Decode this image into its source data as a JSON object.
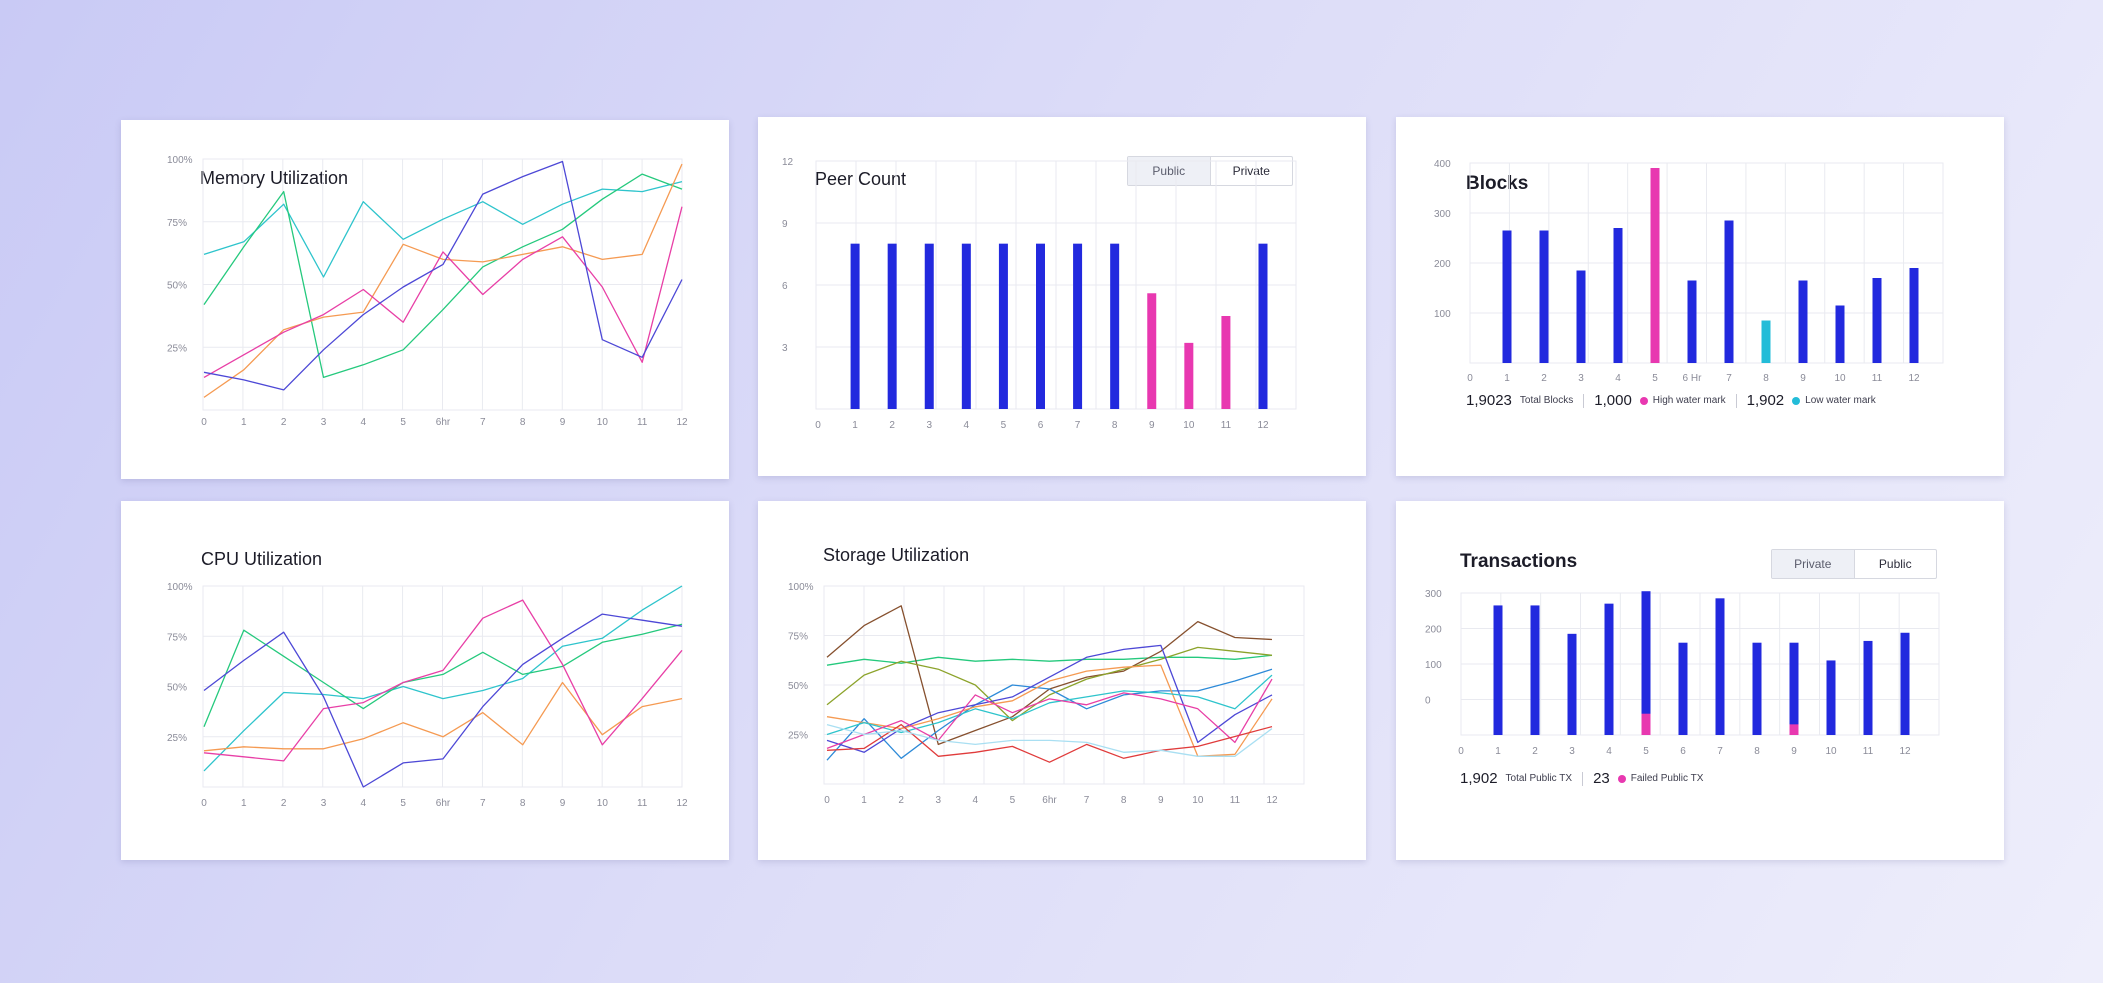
{
  "colors": {
    "primary_bar": "#2229de",
    "high_mark": "#e838b0",
    "low_mark": "#23bcd8",
    "grid": "#e9eaf0"
  },
  "memory": {
    "title": "Memory Utilization",
    "chart_data": {
      "type": "line",
      "title": "Memory Utilization",
      "x": [
        "0",
        "1",
        "2",
        "3",
        "4",
        "5",
        "6hr",
        "7",
        "8",
        "9",
        "10",
        "11",
        "12"
      ],
      "y_ticks": [
        "25%",
        "50%",
        "75%",
        "100%"
      ],
      "ylim": [
        0,
        100
      ],
      "grid": true,
      "series": [
        {
          "color": "#2ec4cc",
          "values": [
            62,
            67,
            82,
            53,
            83,
            68,
            76,
            83,
            74,
            82,
            88,
            87,
            91
          ]
        },
        {
          "color": "#25c97d",
          "values": [
            42,
            65,
            87,
            13,
            18,
            24,
            40,
            57,
            65,
            72,
            84,
            94,
            88
          ]
        },
        {
          "color": "#f59a52",
          "values": [
            5,
            16,
            32,
            37,
            39,
            66,
            60,
            59,
            62,
            65,
            60,
            62,
            98
          ]
        },
        {
          "color": "#e83fa6",
          "values": [
            13,
            22,
            31,
            38,
            48,
            35,
            63,
            46,
            60,
            69,
            49,
            19,
            81
          ]
        },
        {
          "color": "#4d48d6",
          "values": [
            15,
            12,
            8,
            24,
            38,
            49,
            58,
            86,
            93,
            99,
            28,
            21,
            52
          ]
        }
      ]
    }
  },
  "peer": {
    "title": "Peer Count",
    "toggle": {
      "left": "Public",
      "right": "Private"
    },
    "chart_data": {
      "type": "bar",
      "title": "Peer Count",
      "categories": [
        "0",
        "1",
        "2",
        "3",
        "4",
        "5",
        "6",
        "7",
        "8",
        "9",
        "10",
        "11",
        "12"
      ],
      "values": [
        null,
        8,
        8,
        8,
        8,
        8,
        8,
        8,
        8,
        5.6,
        3.2,
        4.5,
        8
      ],
      "highlight": [
        false,
        false,
        false,
        false,
        false,
        false,
        false,
        false,
        false,
        true,
        true,
        true,
        false
      ],
      "y_ticks": [
        "3",
        "6",
        "9",
        "12"
      ],
      "ylim": [
        0,
        12
      ]
    }
  },
  "blocks": {
    "title": "Blocks",
    "chart_data": {
      "type": "bar",
      "title": "Blocks",
      "categories": [
        "0",
        "1",
        "2",
        "3",
        "4",
        "5",
        "6 Hr",
        "7",
        "8",
        "9",
        "10",
        "11",
        "12"
      ],
      "values": [
        null,
        265,
        265,
        185,
        270,
        390,
        165,
        285,
        85,
        165,
        115,
        170,
        190
      ],
      "marks": [
        null,
        "",
        "",
        "",
        "",
        "high",
        "",
        "",
        "low",
        "",
        "",
        "",
        ""
      ],
      "y_ticks": [
        "100",
        "200",
        "300",
        "400"
      ],
      "ylim": [
        0,
        400
      ]
    },
    "stats": [
      {
        "value": "1,9023",
        "label": "Total Blocks"
      },
      {
        "value": "1,000",
        "label": "High water mark"
      },
      {
        "value": "1,902",
        "label": "Low water mark"
      }
    ]
  },
  "cpu": {
    "title": "CPU Utilization",
    "chart_data": {
      "type": "line",
      "title": "CPU Utilization",
      "x": [
        "0",
        "1",
        "2",
        "3",
        "4",
        "5",
        "6hr",
        "7",
        "8",
        "9",
        "10",
        "11",
        "12"
      ],
      "y_ticks": [
        "25%",
        "50%",
        "75%",
        "100%"
      ],
      "ylim": [
        0,
        100
      ],
      "grid": true,
      "series": [
        {
          "color": "#2ec4cc",
          "values": [
            8,
            28,
            47,
            46,
            44,
            50,
            44,
            48,
            54,
            70,
            74,
            88,
            100
          ]
        },
        {
          "color": "#25c97d",
          "values": [
            30,
            78,
            65,
            52,
            39,
            52,
            56,
            67,
            56,
            60,
            72,
            76,
            81
          ]
        },
        {
          "color": "#f59a52",
          "values": [
            18,
            20,
            19,
            19,
            24,
            32,
            25,
            37,
            21,
            52,
            26,
            40,
            44
          ]
        },
        {
          "color": "#e83fa6",
          "values": [
            17,
            15,
            13,
            39,
            42,
            52,
            58,
            84,
            93,
            61,
            21,
            44,
            68
          ]
        },
        {
          "color": "#4d48d6",
          "values": [
            48,
            63,
            77,
            45,
            0,
            12,
            14,
            40,
            61,
            74,
            86,
            83,
            80
          ]
        }
      ]
    }
  },
  "storage": {
    "title": "Storage Utilization",
    "chart_data": {
      "type": "line",
      "title": "Storage Utilization",
      "x": [
        "0",
        "1",
        "2",
        "3",
        "4",
        "5",
        "6hr",
        "7",
        "8",
        "9",
        "10",
        "11",
        "12"
      ],
      "y_ticks": [
        "25%",
        "50%",
        "75%",
        "100%"
      ],
      "ylim": [
        0,
        100
      ],
      "grid": true,
      "series": [
        {
          "color": "#25c97d",
          "values": [
            60,
            63,
            61,
            64,
            62,
            63,
            62,
            63,
            63,
            64,
            64,
            63,
            65
          ]
        },
        {
          "color": "#86502e",
          "values": [
            64,
            80,
            90,
            20,
            27,
            34,
            48,
            54,
            57,
            67,
            82,
            74,
            73
          ]
        },
        {
          "color": "#8ca32b",
          "values": [
            40,
            55,
            62,
            58,
            50,
            32,
            45,
            53,
            58,
            63,
            69,
            67,
            65
          ]
        },
        {
          "color": "#2d8ad8",
          "values": [
            12,
            33,
            13,
            27,
            40,
            50,
            48,
            38,
            45,
            47,
            47,
            52,
            58
          ]
        },
        {
          "color": "#4d48d6",
          "values": [
            22,
            16,
            28,
            36,
            40,
            44,
            54,
            64,
            68,
            70,
            21,
            35,
            45
          ]
        },
        {
          "color": "#f59a52",
          "values": [
            34,
            31,
            28,
            33,
            39,
            42,
            52,
            57,
            59,
            60,
            14,
            15,
            43
          ]
        },
        {
          "color": "#2ec4cc",
          "values": [
            25,
            31,
            26,
            31,
            38,
            33,
            41,
            44,
            47,
            46,
            44,
            38,
            55
          ]
        },
        {
          "color": "#e83fa6",
          "values": [
            18,
            25,
            32,
            22,
            45,
            36,
            43,
            40,
            46,
            43,
            38,
            21,
            53
          ]
        },
        {
          "color": "#e03b3b",
          "values": [
            17,
            18,
            30,
            14,
            16,
            19,
            11,
            20,
            13,
            17,
            19,
            24,
            29
          ]
        },
        {
          "color": "#a9dff2",
          "values": [
            30,
            25,
            27,
            22,
            20,
            22,
            22,
            21,
            16,
            17,
            14,
            14,
            28
          ]
        }
      ]
    }
  },
  "transactions": {
    "title": "Transactions",
    "toggle": {
      "left": "Private",
      "right": "Public"
    },
    "chart_data": {
      "type": "bar",
      "title": "Transactions",
      "categories": [
        "0",
        "1",
        "2",
        "3",
        "4",
        "5",
        "6",
        "7",
        "8",
        "9",
        "10",
        "11",
        "12"
      ],
      "values": [
        null,
        265,
        265,
        185,
        270,
        305,
        160,
        285,
        160,
        160,
        110,
        165,
        188
      ],
      "failed": [
        null,
        0,
        0,
        0,
        0,
        60,
        0,
        0,
        0,
        30,
        0,
        0,
        0
      ],
      "y_ticks": [
        "0",
        "100",
        "200",
        "300"
      ],
      "ylim": [
        -100,
        300
      ]
    },
    "stats": [
      {
        "value": "1,902",
        "label": "Total Public TX"
      },
      {
        "value": "23",
        "label": "Failed Public TX"
      }
    ]
  }
}
